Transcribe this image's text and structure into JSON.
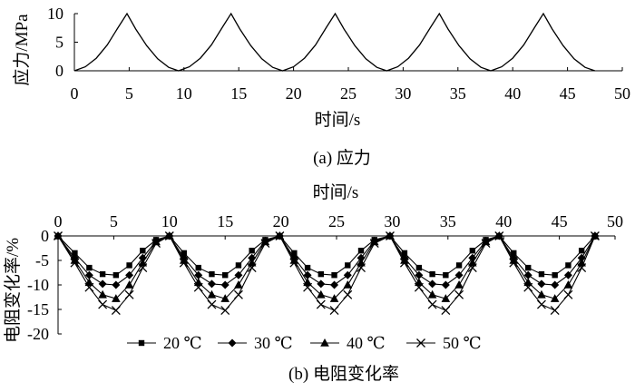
{
  "chart_data": [
    {
      "id": "stress",
      "type": "line",
      "caption": "(a) 应力",
      "xlabel": "时间/s",
      "ylabel": "应力/MPa",
      "xlim": [
        0,
        50
      ],
      "ylim": [
        0,
        10
      ],
      "x_ticks": [
        "0",
        "5",
        "10",
        "15",
        "20",
        "25",
        "30",
        "35",
        "40",
        "45",
        "50"
      ],
      "y_ticks": [
        "0",
        "5",
        "10"
      ],
      "grid": false,
      "series": [
        {
          "x": [
            0,
            1,
            2,
            3,
            4,
            4.8,
            5.6,
            6.6,
            7.6,
            8.6,
            9.5,
            10.5,
            11.5,
            12.5,
            13.5,
            14.3,
            15.1,
            16.1,
            17.1,
            18.1,
            19.0,
            20.0,
            21.0,
            22.0,
            23.0,
            23.8,
            24.6,
            25.6,
            26.6,
            27.6,
            28.5,
            29.5,
            30.5,
            31.5,
            32.5,
            33.3,
            34.1,
            35.1,
            36.1,
            37.1,
            38.0,
            39.0,
            40.0,
            41.0,
            42.0,
            42.8,
            43.6,
            44.6,
            45.6,
            46.6,
            47.5
          ],
          "y": [
            0,
            0.7,
            2.2,
            4.5,
            7.6,
            10,
            7.3,
            4.4,
            2.1,
            0.6,
            0,
            0.7,
            2.2,
            4.5,
            7.6,
            10,
            7.3,
            4.4,
            2.1,
            0.6,
            0,
            0.7,
            2.2,
            4.5,
            7.6,
            10,
            7.3,
            4.4,
            2.1,
            0.6,
            0,
            0.7,
            2.2,
            4.5,
            7.6,
            10,
            7.3,
            4.4,
            2.1,
            0.6,
            0,
            0.7,
            2.2,
            4.5,
            7.6,
            10,
            7.3,
            4.4,
            2.1,
            0.6,
            0
          ]
        }
      ]
    },
    {
      "id": "resistance",
      "type": "line",
      "caption": "(b) 电阻变化率",
      "xlabel": "时间/s",
      "ylabel": "电阻变化率/%",
      "xlim": [
        0,
        50
      ],
      "ylim": [
        -20,
        0
      ],
      "x_ticks": [
        "0",
        "5",
        "10",
        "15",
        "20",
        "25",
        "30",
        "35",
        "40",
        "45",
        "50"
      ],
      "y_ticks": [
        "0",
        "-5",
        "-10",
        "-15",
        "-20"
      ],
      "grid": false,
      "legend": "bottom",
      "x": [
        0,
        1.5,
        2.8,
        4,
        5.2,
        6.4,
        7.6,
        8.8,
        10,
        11.3,
        12.6,
        13.8,
        15,
        16.2,
        17.4,
        18.6,
        19.9,
        21.2,
        22.4,
        23.6,
        24.8,
        26,
        27.2,
        28.4,
        29.8,
        31.1,
        32.4,
        33.6,
        34.8,
        36,
        37.2,
        38.4,
        39.6,
        40.9,
        42.2,
        43.4,
        44.6,
        45.8,
        47,
        48.2
      ],
      "series": [
        {
          "name": "20 ℃",
          "marker": "square",
          "values": [
            0,
            -3.5,
            -6.5,
            -7.8,
            -8.0,
            -6.0,
            -3.0,
            -0.8,
            0,
            -3.5,
            -6.5,
            -7.8,
            -8.0,
            -6.0,
            -3.0,
            -0.8,
            0,
            -3.5,
            -6.5,
            -7.8,
            -8.0,
            -6.0,
            -3.0,
            -0.8,
            0,
            -3.5,
            -6.5,
            -7.8,
            -8.0,
            -6.0,
            -3.0,
            -0.8,
            0,
            -3.5,
            -6.5,
            -7.8,
            -8.0,
            -6.0,
            -3.0,
            0
          ]
        },
        {
          "name": "30 ℃",
          "marker": "diamond",
          "values": [
            0,
            -4.5,
            -8.0,
            -9.8,
            -10.0,
            -8.0,
            -4.5,
            -1.0,
            0,
            -4.5,
            -8.0,
            -9.8,
            -10.0,
            -8.0,
            -4.5,
            -1.0,
            0,
            -4.5,
            -8.0,
            -9.8,
            -10.0,
            -8.0,
            -4.5,
            -1.0,
            0,
            -4.5,
            -8.0,
            -9.8,
            -10.0,
            -8.0,
            -4.5,
            -1.0,
            0,
            -4.5,
            -8.0,
            -9.8,
            -10.0,
            -8.0,
            -4.5,
            0
          ]
        },
        {
          "name": "40 ℃",
          "marker": "triangle",
          "values": [
            0,
            -5.0,
            -9.5,
            -12.0,
            -12.8,
            -10.0,
            -5.5,
            -1.2,
            0,
            -5.0,
            -9.5,
            -12.0,
            -12.8,
            -10.0,
            -5.5,
            -1.2,
            0,
            -5.0,
            -9.5,
            -12.0,
            -12.8,
            -10.0,
            -5.5,
            -1.2,
            0,
            -5.0,
            -9.5,
            -12.0,
            -12.8,
            -10.0,
            -5.5,
            -1.2,
            0,
            -5.0,
            -9.5,
            -12.0,
            -12.8,
            -10.0,
            -5.5,
            0
          ]
        },
        {
          "name": "50 ℃",
          "marker": "cross",
          "values": [
            0,
            -5.5,
            -10.5,
            -14.0,
            -15.2,
            -12.0,
            -6.5,
            -1.5,
            0,
            -5.5,
            -10.5,
            -14.0,
            -15.2,
            -12.0,
            -6.5,
            -1.5,
            0,
            -5.5,
            -10.5,
            -14.0,
            -15.2,
            -12.0,
            -6.5,
            -1.5,
            0,
            -5.5,
            -10.5,
            -14.0,
            -15.2,
            -12.0,
            -6.5,
            -1.5,
            0,
            -5.5,
            -10.5,
            -14.0,
            -15.2,
            -12.0,
            -6.5,
            0
          ]
        }
      ]
    }
  ]
}
